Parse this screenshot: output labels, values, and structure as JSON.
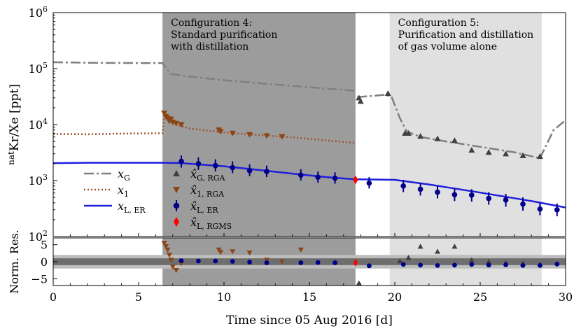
{
  "chart_data": {
    "type": "scatter",
    "xlabel": "Time since 05 Aug 2016 [d]",
    "xlim": [
      0,
      30
    ],
    "x_ticks": [
      0,
      5,
      10,
      15,
      20,
      25,
      30
    ],
    "top_panel": {
      "ylabel_sup": "nat",
      "ylabel_main": "Kr/Xe [ppt]",
      "yscale": "log",
      "ylim": [
        100,
        1000000
      ],
      "y_ticks": [
        {
          "value": 100,
          "mantissa": "10",
          "exp": "2"
        },
        {
          "value": 1000,
          "mantissa": "10",
          "exp": "3"
        },
        {
          "value": 10000,
          "mantissa": "10",
          "exp": "4"
        },
        {
          "value": 100000,
          "mantissa": "10",
          "exp": "5"
        },
        {
          "value": 1000000,
          "mantissa": "10",
          "exp": "6"
        }
      ],
      "regions": [
        {
          "x": [
            6.4,
            17.7
          ],
          "color": "#9c9c9c",
          "label": "Configuration 4:",
          "label2": "Standard purification",
          "label3": "with distillation"
        },
        {
          "x": [
            19.7,
            28.6
          ],
          "color": "#e0e0e0",
          "label": "Configuration 5:",
          "label2": "Purification and distillation",
          "label3": "of gas volume alone"
        }
      ],
      "lines": [
        {
          "name": "x_G",
          "color": "#7f7f7f",
          "dash": "14,4,3,4",
          "width": 2.5,
          "x": [
            0,
            2,
            4,
            6.4,
            6.9,
            8,
            10,
            12,
            14,
            16,
            17.7
          ],
          "y": [
            130000,
            127000,
            126000,
            125000,
            80000,
            72000,
            62000,
            55000,
            49000,
            44000,
            40000
          ]
        },
        {
          "name": "x_G_b",
          "color": "#7f7f7f",
          "dash": "14,4,3,4",
          "width": 2.5,
          "x": [
            17.8,
            18.4,
            19.4,
            19.8,
            20.3,
            20.7,
            21.5,
            23,
            25,
            27,
            28.5
          ],
          "y": [
            31000,
            32000,
            34000,
            32000,
            13000,
            7500,
            6000,
            5000,
            4000,
            3200,
            2500
          ]
        },
        {
          "name": "x_G_c",
          "color": "#7f7f7f",
          "dash": "14,4,3,4",
          "width": 2.5,
          "x": [
            28.5,
            28.9,
            29.3,
            30
          ],
          "y": [
            2500,
            4500,
            8000,
            12000
          ]
        },
        {
          "name": "x_1",
          "color": "#a0522d",
          "dash": "2,3",
          "width": 2.5,
          "x": [
            0,
            2,
            4,
            6.4,
            6.5,
            7.2,
            8,
            10,
            12,
            14,
            16,
            17.7
          ],
          "y": [
            6800,
            6700,
            6900,
            7000,
            14000,
            10000,
            8500,
            7200,
            6500,
            5900,
            5200,
            4700
          ]
        },
        {
          "name": "x_L_ER",
          "color": "#1f1fdd",
          "dash": "",
          "width": 2.5,
          "x": [
            0,
            2,
            4,
            6.4,
            7.5,
            10,
            12,
            14,
            16,
            17.7,
            18,
            20,
            22,
            25,
            28,
            30
          ],
          "y": [
            2050,
            2080,
            2080,
            2080,
            2050,
            1800,
            1550,
            1330,
            1150,
            1050,
            1050,
            1030,
            850,
            610,
            430,
            330
          ]
        }
      ],
      "points": [
        {
          "name": "x_hat_G_RGA",
          "color": "#404040",
          "marker": "triangle-up",
          "x": [
            17.9,
            18.0,
            19.6,
            20.6,
            20.8,
            21.5,
            22.5,
            23.5,
            24.5,
            25.5,
            26.5,
            27.5,
            28.5
          ],
          "y": [
            30000,
            26000,
            36000,
            7000,
            7000,
            6200,
            5600,
            5200,
            3500,
            3200,
            3000,
            2800,
            2700
          ]
        },
        {
          "name": "x_hat_1_RGA",
          "color": "#8b4513",
          "marker": "triangle-down",
          "x": [
            6.5,
            6.6,
            6.7,
            6.8,
            6.9,
            7.0,
            7.2,
            7.5,
            9.7,
            9.8,
            10.5,
            11.5,
            12.5,
            13.4
          ],
          "y": [
            16000,
            14000,
            13000,
            11500,
            12500,
            11000,
            10500,
            10000,
            8000,
            7500,
            7000,
            6600,
            6300,
            6100
          ]
        },
        {
          "name": "x_hat_L_ER",
          "color": "#00008b",
          "marker": "circle",
          "x": [
            7.5,
            8.5,
            9.5,
            10.5,
            11.5,
            12.5,
            14.5,
            15.5,
            16.5,
            18.5,
            20.5,
            21.5,
            22.5,
            23.5,
            24.5,
            25.5,
            26.5,
            27.5,
            28.5,
            29.5
          ],
          "y": [
            2200,
            2000,
            1850,
            1700,
            1500,
            1450,
            1250,
            1150,
            1100,
            900,
            800,
            700,
            620,
            560,
            550,
            480,
            450,
            380,
            310,
            300
          ],
          "err_low": [
            1700,
            1550,
            1450,
            1350,
            1200,
            1150,
            1000,
            920,
            880,
            720,
            620,
            540,
            480,
            430,
            420,
            370,
            340,
            290,
            240,
            230
          ],
          "err_high": [
            2800,
            2600,
            2400,
            2200,
            1950,
            1850,
            1600,
            1450,
            1400,
            1150,
            1030,
            900,
            800,
            720,
            700,
            620,
            580,
            500,
            400,
            390
          ]
        },
        {
          "name": "x_hat_L_RGMS",
          "color": "#ff0000",
          "marker": "diamond",
          "x": [
            17.7
          ],
          "y": [
            1030
          ]
        }
      ],
      "legend": {
        "placement": "lower-left",
        "lines": [
          {
            "key": "x_G",
            "base": "x",
            "sub": "G",
            "color": "#7f7f7f",
            "dash": "14,4,3,4"
          },
          {
            "key": "x_1",
            "base": "x",
            "sub": "1",
            "color": "#a0522d",
            "dash": "2,3"
          },
          {
            "key": "x_L_ER",
            "base": "x",
            "sub": "L, ER",
            "color": "#1f1fdd",
            "dash": ""
          }
        ],
        "markers": [
          {
            "key": "x_hat_G_RGA",
            "base": "x̂",
            "sub": "G, RGA",
            "color": "#404040",
            "marker": "triangle-up"
          },
          {
            "key": "x_hat_1_RGA",
            "base": "x̂",
            "sub": "1, RGA",
            "color": "#8b4513",
            "marker": "triangle-down"
          },
          {
            "key": "x_hat_L_ER",
            "base": "x̂",
            "sub": "L, ER",
            "color": "#00008b",
            "marker": "circle"
          },
          {
            "key": "x_hat_L_RGMS",
            "base": "x̂",
            "sub": "L, RGMS",
            "color": "#ff0000",
            "marker": "diamond"
          }
        ]
      }
    },
    "bottom_panel": {
      "ylabel": "Norm. Res.",
      "ylim": [
        -7,
        7
      ],
      "y_ticks": [
        {
          "value": -5,
          "label": "−5"
        },
        {
          "value": 0,
          "label": "0"
        },
        {
          "value": 5,
          "label": "5"
        }
      ],
      "bands": [
        {
          "range": [
            -2,
            2
          ],
          "color": "#bdbdbd"
        },
        {
          "range": [
            -1,
            1
          ],
          "color": "#6e6e6e"
        }
      ],
      "points": [
        {
          "name": "res_G_RGA",
          "color": "#404040",
          "marker": "triangle-up",
          "x": [
            17.9,
            20.3,
            20.8,
            21.5,
            22.5,
            23.5,
            24.5,
            25.5,
            26.5,
            27.5,
            28.5
          ],
          "y": [
            -6.3,
            0.2,
            1.2,
            4.5,
            3.0,
            4.5,
            0.5,
            0.0,
            -0.3,
            -0.5,
            -0.7
          ]
        },
        {
          "name": "res_1_RGA",
          "color": "#8b4513",
          "marker": "triangle-down",
          "x": [
            6.5,
            6.6,
            6.7,
            6.8,
            6.9,
            7.0,
            7.2,
            7.5,
            9.7,
            9.8,
            10.5,
            11.5,
            12.5,
            13.4,
            14.5
          ],
          "y": [
            5.5,
            4.5,
            3.5,
            2.0,
            0.5,
            -1.5,
            -2.5,
            -0.5,
            3.5,
            2.8,
            3.0,
            2.6,
            0.5,
            0.0,
            3.5
          ]
        },
        {
          "name": "res_L_ER",
          "color": "#00008b",
          "marker": "circle",
          "x": [
            7.5,
            8.5,
            9.5,
            10.5,
            11.5,
            12.5,
            14.5,
            15.5,
            16.5,
            18.5,
            20.5,
            21.5,
            22.5,
            23.5,
            24.5,
            25.5,
            26.5,
            27.5,
            28.5,
            29.5
          ],
          "y": [
            0.3,
            0.2,
            0.2,
            0.1,
            -0.1,
            -0.3,
            -0.3,
            -0.2,
            -0.3,
            -1.2,
            -0.8,
            -1.0,
            -1.1,
            -1.0,
            -0.8,
            -1.0,
            -0.9,
            -1.1,
            -1.1,
            -0.7
          ]
        },
        {
          "name": "res_L_RGMS",
          "color": "#ff0000",
          "marker": "diamond",
          "x": [
            17.7
          ],
          "y": [
            -0.3
          ]
        }
      ]
    }
  }
}
